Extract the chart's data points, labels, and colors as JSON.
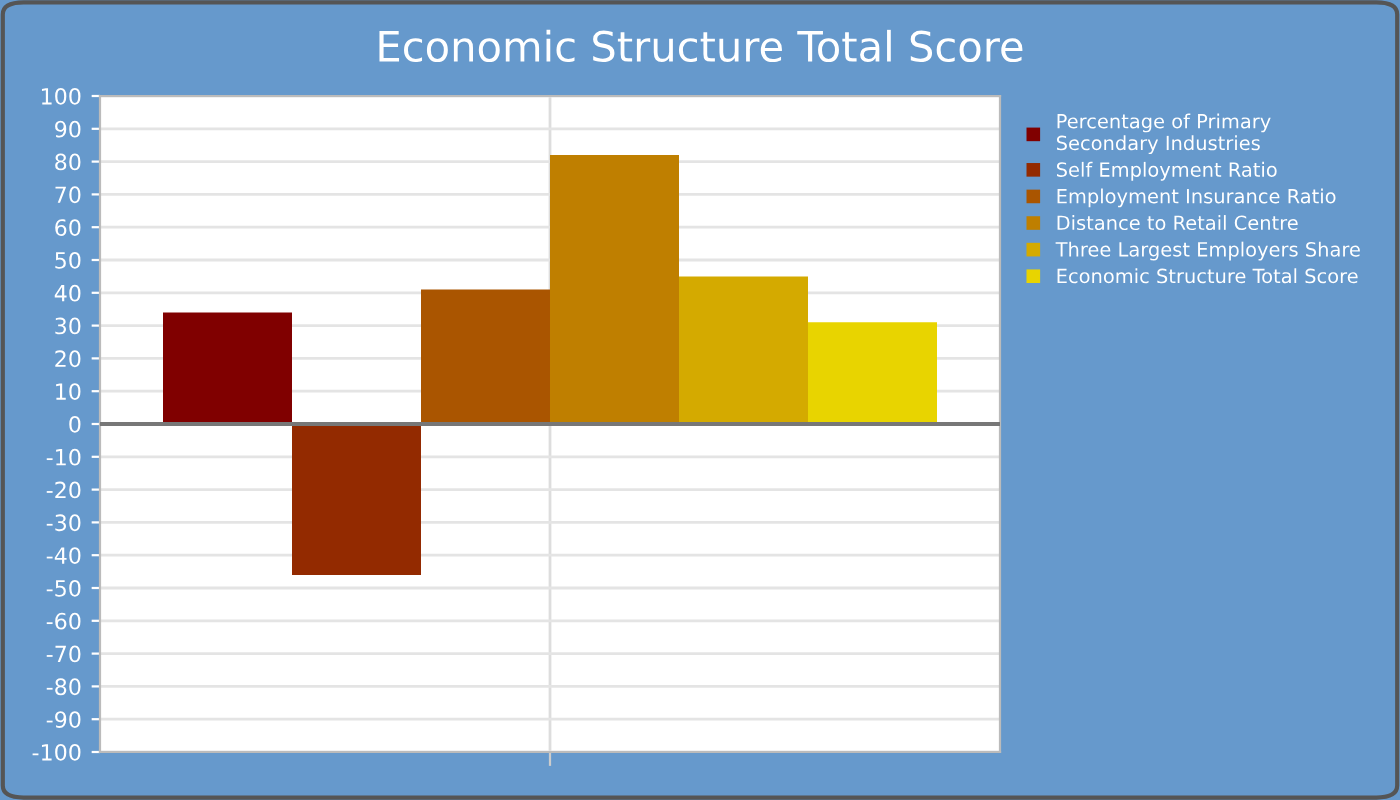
{
  "chart_data": {
    "type": "bar",
    "title": "Economic Structure Total Score",
    "categories": [
      null
    ],
    "series": [
      {
        "name": "Percentage of Primary\nSecondary Industries",
        "color": "#800000",
        "values": [
          34
        ]
      },
      {
        "name": "Self Employment Ratio",
        "color": "#932a00",
        "values": [
          -46
        ]
      },
      {
        "name": "Employment Insurance Ratio",
        "color": "#aa5500",
        "values": [
          41
        ]
      },
      {
        "name": "Distance to Retail Centre",
        "color": "#bf7f00",
        "values": [
          82
        ]
      },
      {
        "name": "Three Largest Employers Share",
        "color": "#d4aa00",
        "values": [
          45
        ]
      },
      {
        "name": "Economic Structure Total Score",
        "color": "#e8d400",
        "values": [
          31
        ]
      }
    ],
    "ylim": [
      -100,
      100
    ],
    "yticks": [
      -100,
      -90,
      -80,
      -70,
      -60,
      -50,
      -40,
      -30,
      -20,
      -10,
      0,
      10,
      20,
      30,
      40,
      50,
      60,
      70,
      80,
      90,
      100
    ],
    "grid": true,
    "legend": "top right"
  }
}
